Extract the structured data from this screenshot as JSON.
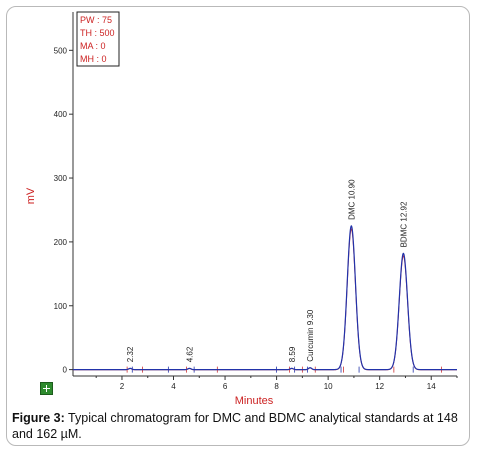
{
  "chart_data": {
    "type": "line",
    "xlabel": "Minutes",
    "ylabel": "mV",
    "xlim": [
      0.1,
      15.0
    ],
    "ylim": [
      -10,
      560
    ],
    "xticks": [
      2,
      4,
      6,
      8,
      10,
      12,
      14
    ],
    "yticks": [
      0,
      100,
      200,
      300,
      400,
      500
    ],
    "parameters": [
      "PW : 75",
      "TH : 500",
      "MA : 0",
      "MH : 0"
    ],
    "peaks": [
      {
        "label": "2.32",
        "time": 2.32,
        "height": 2,
        "width": 0.06
      },
      {
        "label": "4.62",
        "time": 4.62,
        "height": 2,
        "width": 0.06
      },
      {
        "label": "8.59",
        "time": 8.59,
        "height": 2,
        "width": 0.06
      },
      {
        "label": "Curcumin 9.30",
        "time": 9.3,
        "height": 3,
        "width": 0.06
      },
      {
        "label": "DMC 10.90",
        "time": 10.9,
        "height": 225,
        "width": 0.16
      },
      {
        "label": "BDMC 12.92",
        "time": 12.92,
        "height": 182,
        "width": 0.16
      }
    ]
  },
  "caption": {
    "prefix": "Figure 3:",
    "text": " Typical chromatogram for DMC and BDMC analytical standards at 148 and 162 µM."
  }
}
